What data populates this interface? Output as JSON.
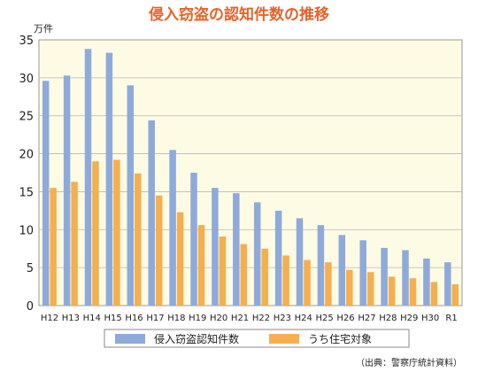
{
  "chart_data": {
    "type": "bar",
    "title": "侵入窃盗の認知件数の推移",
    "unit_label": "万件",
    "source": "（出典：警察庁統計資料）",
    "categories": [
      "H12",
      "H13",
      "H14",
      "H15",
      "H16",
      "H17",
      "H18",
      "H19",
      "H20",
      "H21",
      "H22",
      "H23",
      "H24",
      "H25",
      "H26",
      "H27",
      "H28",
      "H29",
      "H30",
      "R1"
    ],
    "series": [
      {
        "name": "侵入窃盗認知件数",
        "color": "#8eaadb",
        "values": [
          29.6,
          30.3,
          33.8,
          33.3,
          29.0,
          24.4,
          20.5,
          17.5,
          15.5,
          14.8,
          13.6,
          12.5,
          11.5,
          10.6,
          9.3,
          8.6,
          7.6,
          7.3,
          6.2,
          5.7
        ]
      },
      {
        "name": "うち住宅対象",
        "color": "#f5ae50",
        "values": [
          15.5,
          16.3,
          19.0,
          19.2,
          17.4,
          14.5,
          12.3,
          10.6,
          9.1,
          8.1,
          7.5,
          6.6,
          6.0,
          5.7,
          4.7,
          4.4,
          3.8,
          3.6,
          3.1,
          2.8
        ]
      }
    ],
    "yticks": [
      0,
      5,
      10,
      15,
      20,
      25,
      30,
      35
    ],
    "ylim": [
      0,
      35
    ],
    "grid": true,
    "legend_position": "bottom",
    "background": "#fdfbe4",
    "title_color": "#e8622a"
  }
}
